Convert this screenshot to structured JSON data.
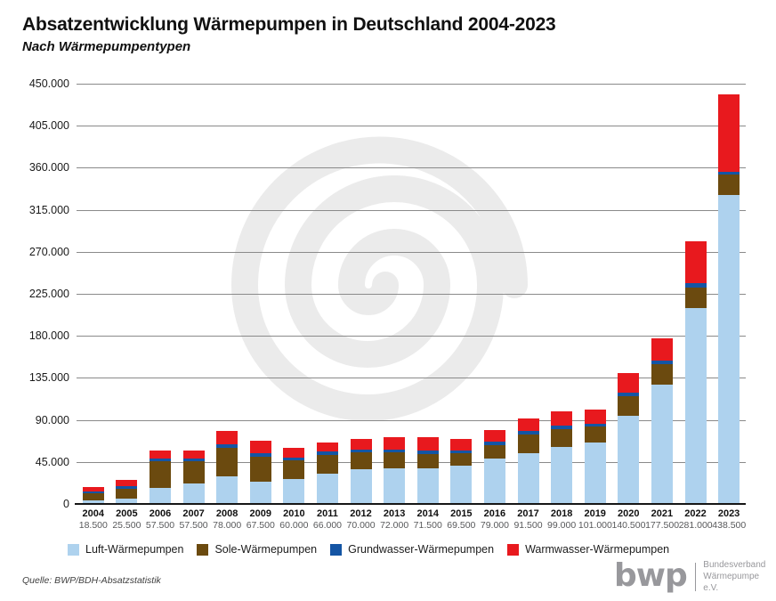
{
  "header": {
    "title": "Absatzentwicklung Wärmepumpen in Deutschland 2004-2023",
    "subtitle": "Nach Wärmepumpentypen"
  },
  "chart_data": {
    "type": "bar",
    "stacked": true,
    "title": "Absatzentwicklung Wärmepumpen in Deutschland 2004-2023",
    "subtitle": "Nach Wärmepumpentypen",
    "grid": "horizontal",
    "legend_position": "bottom",
    "ylim": [
      0,
      450000
    ],
    "yticks": [
      {
        "value": 0,
        "label": "0"
      },
      {
        "value": 45000,
        "label": "45.000"
      },
      {
        "value": 90000,
        "label": "90.000"
      },
      {
        "value": 135000,
        "label": "135.000"
      },
      {
        "value": 180000,
        "label": "180.000"
      },
      {
        "value": 225000,
        "label": "225.000"
      },
      {
        "value": 270000,
        "label": "270.000"
      },
      {
        "value": 315000,
        "label": "315.000"
      },
      {
        "value": 360000,
        "label": "360.000"
      },
      {
        "value": 405000,
        "label": "405.000"
      },
      {
        "value": 450000,
        "label": "450.000"
      }
    ],
    "categories": [
      "2004",
      "2005",
      "2006",
      "2007",
      "2008",
      "2009",
      "2010",
      "2011",
      "2012",
      "2013",
      "2014",
      "2015",
      "2016",
      "2017",
      "2018",
      "2019",
      "2020",
      "2021",
      "2022",
      "2023"
    ],
    "totals": [
      "18.500",
      "25.500",
      "57.500",
      "57.500",
      "78.000",
      "67.500",
      "60.000",
      "66.000",
      "70.000",
      "72.000",
      "71.500",
      "69.500",
      "79.000",
      "91.500",
      "99.000",
      "101.000",
      "140.500",
      "177.500",
      "281.000",
      "438.500"
    ],
    "series": [
      {
        "key": "luft",
        "name": "Luft-Wärmepumpen",
        "color": "#aed2ee",
        "values": [
          4000,
          6000,
          17500,
          21500,
          29500,
          24000,
          26500,
          32000,
          37500,
          38500,
          38000,
          41000,
          49000,
          54500,
          61000,
          65500,
          94500,
          127500,
          210000,
          330500
        ]
      },
      {
        "key": "sole",
        "name": "Sole-Wärmepumpen",
        "color": "#6b4a0f",
        "values": [
          7000,
          10500,
          28000,
          24500,
          31000,
          27000,
          20000,
          20500,
          17500,
          16500,
          15500,
          13000,
          14000,
          20000,
          19500,
          17000,
          20500,
          22000,
          21500,
          22000
        ]
      },
      {
        "key": "grundwasser",
        "name": "Grundwasser-Wärmepumpen",
        "color": "#1455a4",
        "values": [
          2000,
          2500,
          3500,
          3000,
          3500,
          3500,
          3500,
          3500,
          3500,
          3500,
          3500,
          3000,
          3500,
          3500,
          3500,
          3500,
          4000,
          4500,
          4500,
          3500
        ]
      },
      {
        "key": "warmwasser",
        "name": "Warmwasser-Wärmepumpen",
        "color": "#e8191e",
        "values": [
          5500,
          6500,
          8500,
          8500,
          14000,
          13000,
          10000,
          10000,
          11500,
          13500,
          14500,
          12500,
          12500,
          13500,
          15000,
          15000,
          21500,
          23500,
          45000,
          82500
        ]
      }
    ]
  },
  "style": {
    "watermark_color": "#ebebeb",
    "gridline_color": "#8a8a8a",
    "baseline_color": "#161616"
  },
  "footer": {
    "source": "Quelle: BWP/BDH-Absatzstatistik",
    "logo": {
      "wordmark": "bwp",
      "org_line1": "Bundesverband",
      "org_line2": "Wärmepumpe e.V."
    }
  }
}
